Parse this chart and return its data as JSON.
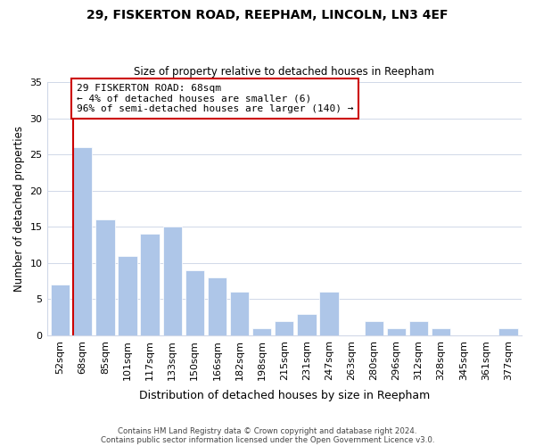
{
  "title": "29, FISKERTON ROAD, REEPHAM, LINCOLN, LN3 4EF",
  "subtitle": "Size of property relative to detached houses in Reepham",
  "xlabel": "Distribution of detached houses by size in Reepham",
  "ylabel": "Number of detached properties",
  "bar_labels": [
    "52sqm",
    "68sqm",
    "85sqm",
    "101sqm",
    "117sqm",
    "133sqm",
    "150sqm",
    "166sqm",
    "182sqm",
    "198sqm",
    "215sqm",
    "231sqm",
    "247sqm",
    "263sqm",
    "280sqm",
    "296sqm",
    "312sqm",
    "328sqm",
    "345sqm",
    "361sqm",
    "377sqm"
  ],
  "bar_values": [
    7,
    26,
    16,
    11,
    14,
    15,
    9,
    8,
    6,
    1,
    2,
    3,
    6,
    0,
    2,
    1,
    2,
    1,
    0,
    0,
    1
  ],
  "bar_color": "#aec6e8",
  "bar_edge_color": "#aec6e8",
  "highlight_index": 1,
  "highlight_line_color": "#cc0000",
  "ylim": [
    0,
    35
  ],
  "yticks": [
    0,
    5,
    10,
    15,
    20,
    25,
    30,
    35
  ],
  "annotation_text": "29 FISKERTON ROAD: 68sqm\n← 4% of detached houses are smaller (6)\n96% of semi-detached houses are larger (140) →",
  "annotation_box_edge_color": "#cc0000",
  "footer_line1": "Contains HM Land Registry data © Crown copyright and database right 2024.",
  "footer_line2": "Contains public sector information licensed under the Open Government Licence v3.0.",
  "background_color": "#ffffff",
  "grid_color": "#d0d8e8"
}
